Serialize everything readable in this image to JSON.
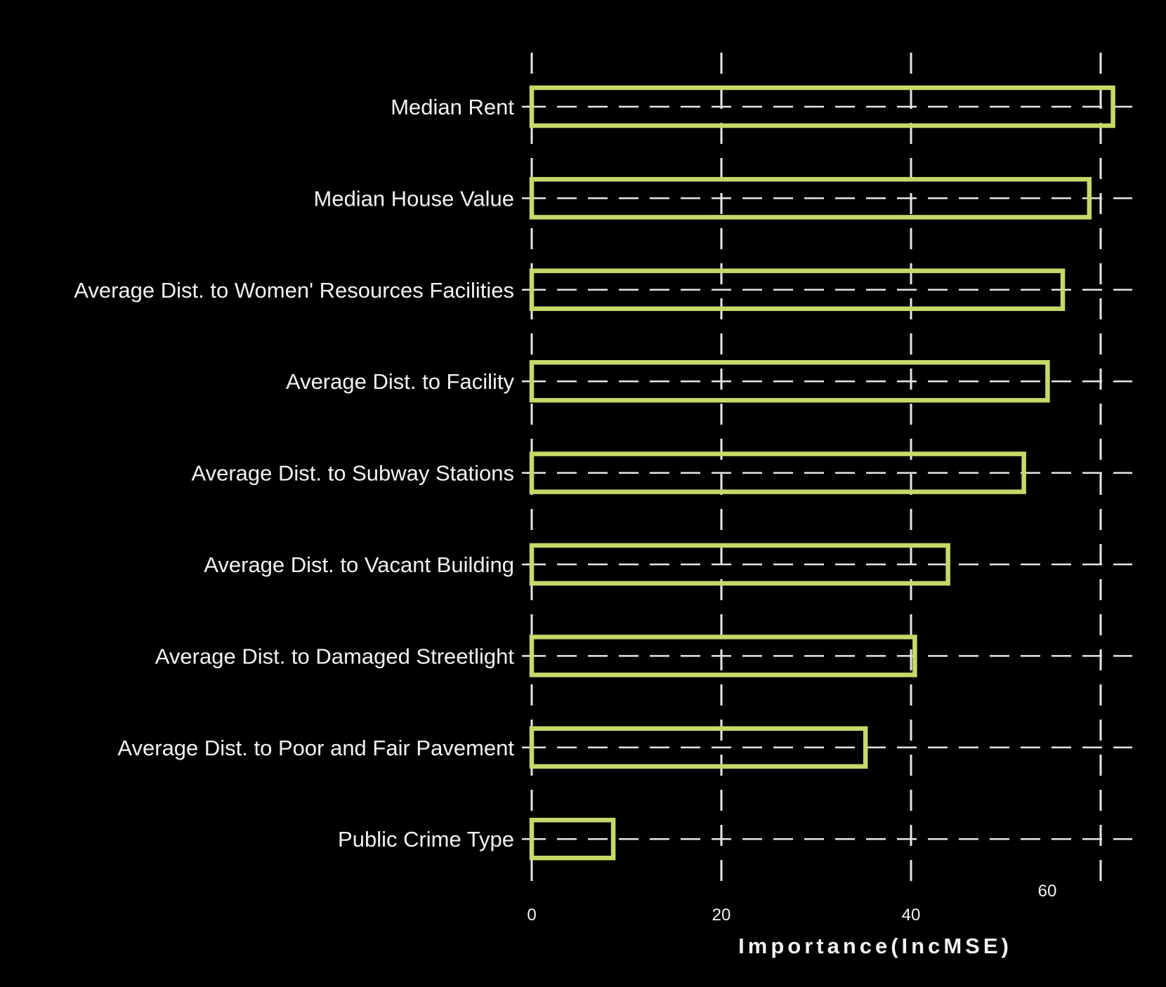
{
  "chart_data": {
    "type": "bar",
    "orientation": "horizontal",
    "categories": [
      "Median Rent",
      "Median House Value",
      "Average Dist. to Women' Resources Facilities",
      "Average Dist. to Facility",
      "Average Dist. to Subway Stations",
      "Average Dist. to Vacant Building",
      "Average Dist. to Damaged Streetlight",
      "Average Dist. to Poor and Fair Pavement",
      "Public Crime Type"
    ],
    "values": [
      61.3,
      58.8,
      56.0,
      54.4,
      51.9,
      43.9,
      40.4,
      35.2,
      8.6
    ],
    "xlabel": "Importance(IncMSE)",
    "ylabel": "",
    "xlim": [
      0,
      63
    ],
    "xticks": [
      {
        "value": 0,
        "label": "0"
      },
      {
        "value": 20,
        "label": "20"
      },
      {
        "value": 40,
        "label": "40"
      },
      {
        "value": 60,
        "label": "60"
      }
    ],
    "grid": true,
    "bar_fill": "none",
    "bar_outline_color": "#c8d868",
    "background": "#000000",
    "text_color": "#f2f2f2",
    "grid_color": "#e6e6e6"
  }
}
